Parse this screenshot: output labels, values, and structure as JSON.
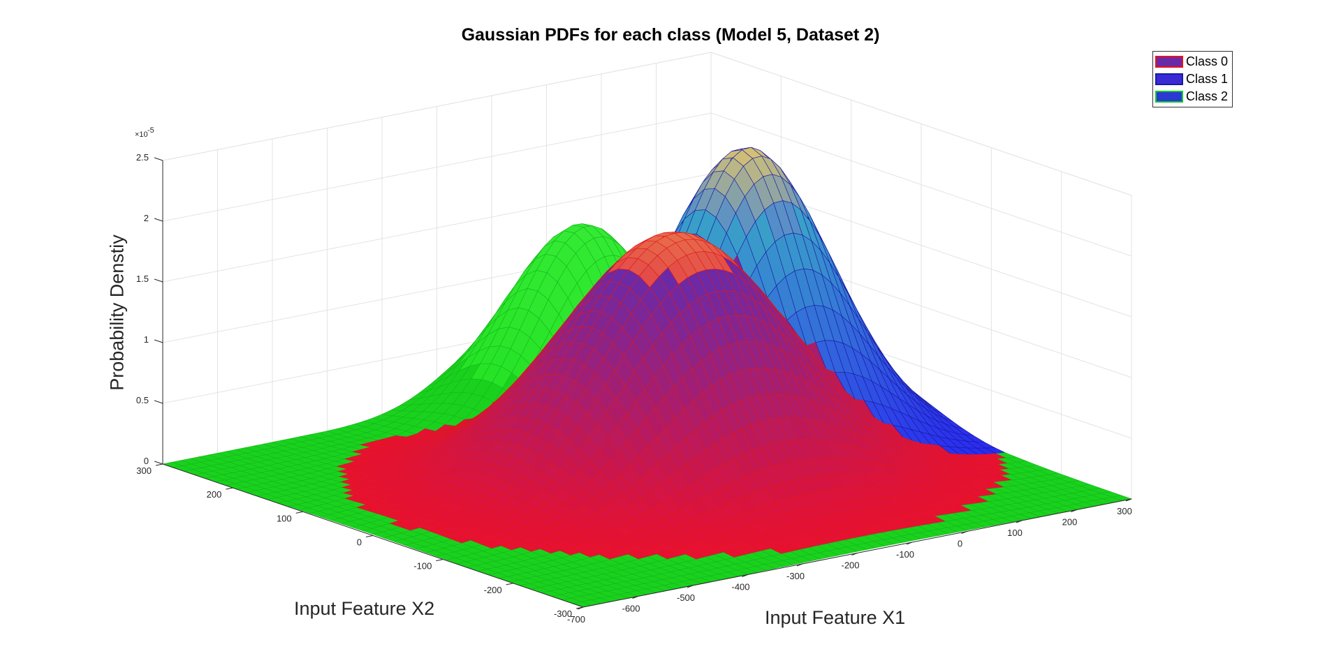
{
  "chart_data": {
    "type": "surface3d",
    "title": "Gaussian PDFs for each class (Model 5, Dataset 2)",
    "xlabel": "Input Feature X1",
    "ylabel": "Input Feature X2",
    "zlabel": "Probability Denstiy",
    "z_exponent_label": "×10",
    "z_exponent_power": "-5",
    "xlim": [
      -700,
      300
    ],
    "ylim": [
      -300,
      300
    ],
    "zlim": [
      0,
      2.5
    ],
    "x_ticks": [
      "-700",
      "-600",
      "-500",
      "-400",
      "-300",
      "-200",
      "-100",
      "0",
      "100",
      "200",
      "300"
    ],
    "y_ticks": [
      "-300",
      "-200",
      "-100",
      "0",
      "100",
      "200",
      "300"
    ],
    "z_ticks": [
      "0",
      "0.5",
      "1",
      "1.5",
      "2",
      "2.5"
    ],
    "grid": true,
    "legend_position": "top-right",
    "series": [
      {
        "name": "Class 0",
        "face_color": "#6a2aa8",
        "edge_color": "#e8101a",
        "peak": 2.0,
        "mean_x1": -150,
        "mean_x2": 0
      },
      {
        "name": "Class 1",
        "face_color": "#3a2ad6",
        "edge_color": "#1a1aa0",
        "peak": 2.4,
        "mean_x1": 60,
        "mean_x2": 60
      },
      {
        "name": "Class 2",
        "face_color": "#2a3ad0",
        "edge_color": "#12c632",
        "peak": 1.6,
        "mean_x1": -60,
        "mean_x2": 200
      }
    ]
  }
}
